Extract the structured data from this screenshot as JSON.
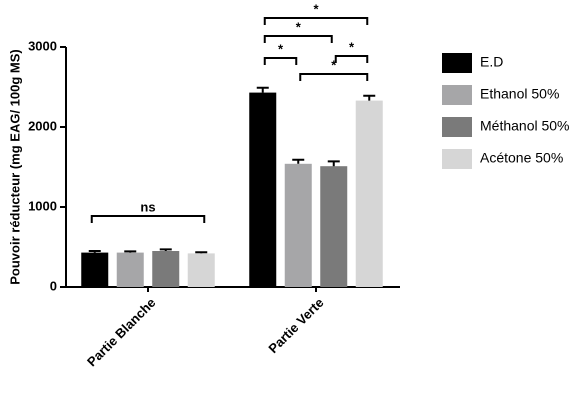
{
  "chart_data": {
    "type": "bar",
    "y_label": "Pouvoir réducteur (mg EAG/ 100g MS)",
    "categories": [
      "Partie Blanche",
      "Partie Verte"
    ],
    "series": [
      {
        "name": "E.D",
        "color": "#000000",
        "values": [
          430,
          2430
        ],
        "errors": [
          20,
          60
        ]
      },
      {
        "name": "Ethanol 50%",
        "color": "#a6a6a8",
        "values": [
          430,
          1540
        ],
        "errors": [
          15,
          50
        ]
      },
      {
        "name": "Méthanol 50%",
        "color": "#7a7a7a",
        "values": [
          450,
          1510
        ],
        "errors": [
          20,
          60
        ]
      },
      {
        "name": "Acétone 50%",
        "color": "#d6d6d6",
        "values": [
          420,
          2330
        ],
        "errors": [
          15,
          60
        ]
      }
    ],
    "ylim": [
      0,
      3000
    ],
    "yticks": [
      0,
      1000,
      2000,
      3000
    ],
    "annotations": [
      "ns",
      "*",
      "*",
      "*",
      "*",
      "*"
    ]
  }
}
